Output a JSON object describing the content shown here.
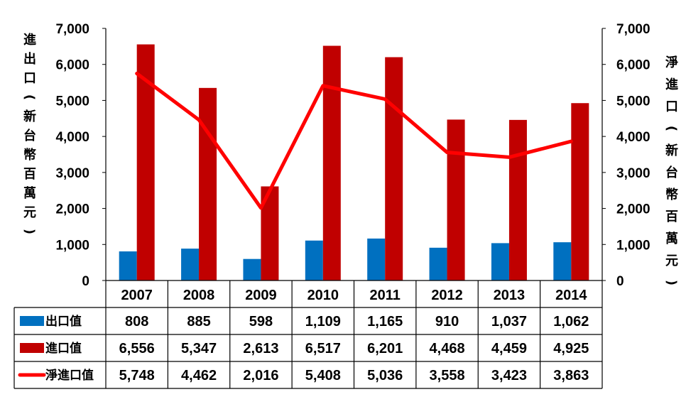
{
  "chart_data": {
    "type": "bar",
    "categories": [
      "2007",
      "2008",
      "2009",
      "2010",
      "2011",
      "2012",
      "2013",
      "2014"
    ],
    "series": [
      {
        "name": "出口值",
        "kind": "bar",
        "color": "#0070C0",
        "axis": "left",
        "values": [
          808,
          885,
          598,
          1109,
          1165,
          910,
          1037,
          1062
        ],
        "display": [
          "808",
          "885",
          "598",
          "1,109",
          "1,165",
          "910",
          "1,037",
          "1,062"
        ]
      },
      {
        "name": "進口值",
        "kind": "bar",
        "color": "#C00000",
        "axis": "left",
        "values": [
          6556,
          5347,
          2613,
          6517,
          6201,
          4468,
          4459,
          4925
        ],
        "display": [
          "6,556",
          "5,347",
          "2,613",
          "6,517",
          "6,201",
          "4,468",
          "4,459",
          "4,925"
        ]
      },
      {
        "name": "淨進口值",
        "kind": "line",
        "color": "#FF0000",
        "axis": "right",
        "values": [
          5748,
          4462,
          2016,
          5408,
          5036,
          3558,
          3423,
          3863
        ],
        "display": [
          "5,748",
          "4,462",
          "2,016",
          "5,408",
          "5,036",
          "3,558",
          "3,423",
          "3,863"
        ]
      }
    ],
    "ylabel_left": "進出口（新台幣百萬元）",
    "ylabel_right": "淨進口（新台幣百萬元）",
    "ylim": [
      0,
      7000
    ],
    "yticks": [
      "0",
      "1,000",
      "2,000",
      "3,000",
      "4,000",
      "5,000",
      "6,000",
      "7,000"
    ],
    "legend": "data-table",
    "grid": false
  }
}
